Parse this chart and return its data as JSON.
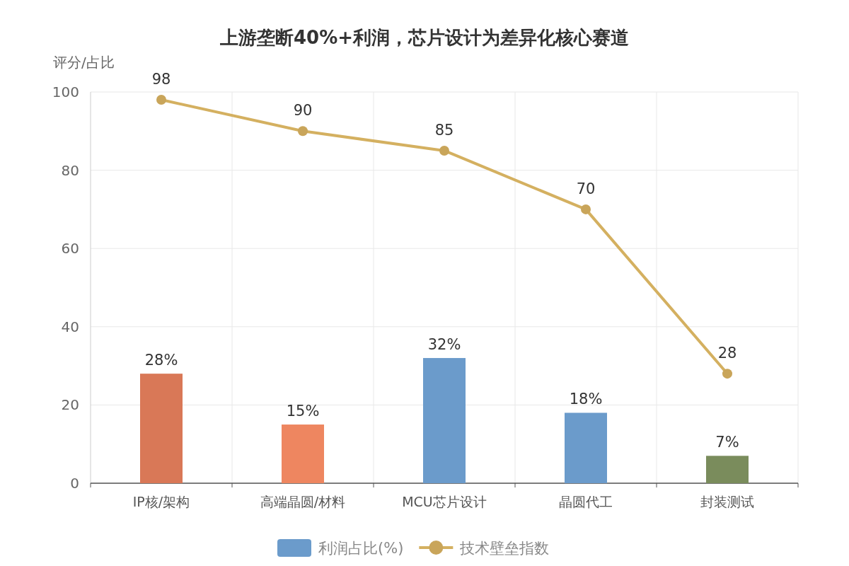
{
  "chart_data": {
    "type": "bar",
    "title": "上游垄断40%+利润，芯片设计为差异化核心赛道",
    "ylabel": "评分/占比",
    "categories": [
      "IP核/架构",
      "高端晶圆/材料",
      "MCU芯片设计",
      "晶圆代工",
      "封装测试"
    ],
    "series": [
      {
        "name": "利润占比(%)",
        "color": "#6b9bcb",
        "colors": [
          "#d97857",
          "#ee8660",
          "#6b9bcb",
          "#6b9bcb",
          "#7a8c5c"
        ],
        "values": [
          28,
          15,
          32,
          18,
          7
        ],
        "value_labels": [
          "28%",
          "15%",
          "32%",
          "18%",
          "7%"
        ]
      },
      {
        "name": "技术壁垒指数",
        "type": "line",
        "color": "#d4b060",
        "marker": "circle",
        "values": [
          98,
          90,
          85,
          70,
          28
        ],
        "value_labels": [
          "98",
          "90",
          "85",
          "70",
          "28"
        ]
      }
    ],
    "ylim": [
      0,
      100
    ],
    "yticks": [
      0,
      20,
      40,
      60,
      80,
      100
    ],
    "grid": true,
    "legend": "bottom"
  }
}
